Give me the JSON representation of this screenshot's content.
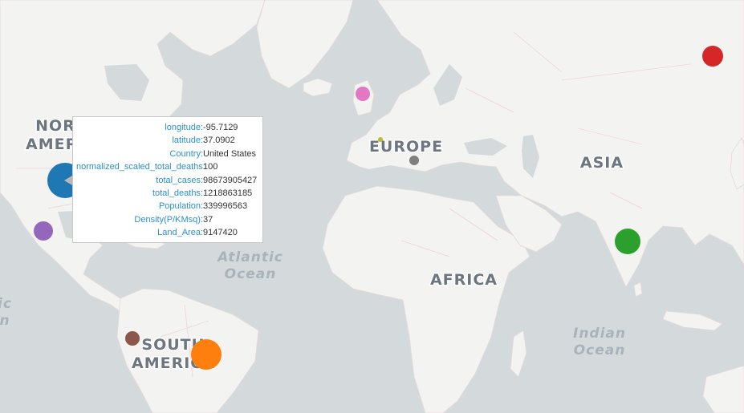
{
  "labels": {
    "continents": [
      {
        "id": "north-america",
        "lines": [
          "NORTH",
          "AMERICA"
        ]
      },
      {
        "id": "south-america",
        "lines": [
          "SOUTH",
          "AMERICA"
        ]
      },
      {
        "id": "europe",
        "lines": [
          "EUROPE"
        ]
      },
      {
        "id": "africa",
        "lines": [
          "AFRICA"
        ]
      },
      {
        "id": "asia",
        "lines": [
          "ASIA"
        ]
      }
    ],
    "oceans": [
      {
        "id": "atlantic",
        "lines": [
          "Atlantic",
          "Ocean"
        ]
      },
      {
        "id": "indian",
        "lines": [
          "Indian",
          "Ocean"
        ]
      },
      {
        "id": "pacific-partial",
        "lines": [
          "ic",
          "n"
        ]
      }
    ]
  },
  "markers": [
    {
      "id": "usa",
      "color": "#1f77b4"
    },
    {
      "id": "mexico",
      "color": "#9467bd"
    },
    {
      "id": "brazil",
      "color": "#ff7f0e"
    },
    {
      "id": "peru",
      "color": "#8c564b"
    },
    {
      "id": "uk",
      "color": "#e377c2"
    },
    {
      "id": "italy",
      "color": "#7f7f7f"
    },
    {
      "id": "france",
      "color": "#bcbd22"
    },
    {
      "id": "india",
      "color": "#2ca02c"
    },
    {
      "id": "russia",
      "color": "#d62728"
    }
  ],
  "tooltip": {
    "rows": [
      {
        "key": "longitude:",
        "value": "-95.7129"
      },
      {
        "key": "latitude:",
        "value": "37.0902"
      },
      {
        "key": "Country:",
        "value": "United States"
      },
      {
        "key": "normalized_scaled_total_deaths:",
        "value": "100"
      },
      {
        "key": "total_cases:",
        "value": "98673905427"
      },
      {
        "key": "total_deaths:",
        "value": "1218863185"
      },
      {
        "key": "Population:",
        "value": "339996563"
      },
      {
        "key": "Density(P/KMsq):",
        "value": "37"
      },
      {
        "key": "Land_Area:",
        "value": "9147420"
      }
    ]
  }
}
